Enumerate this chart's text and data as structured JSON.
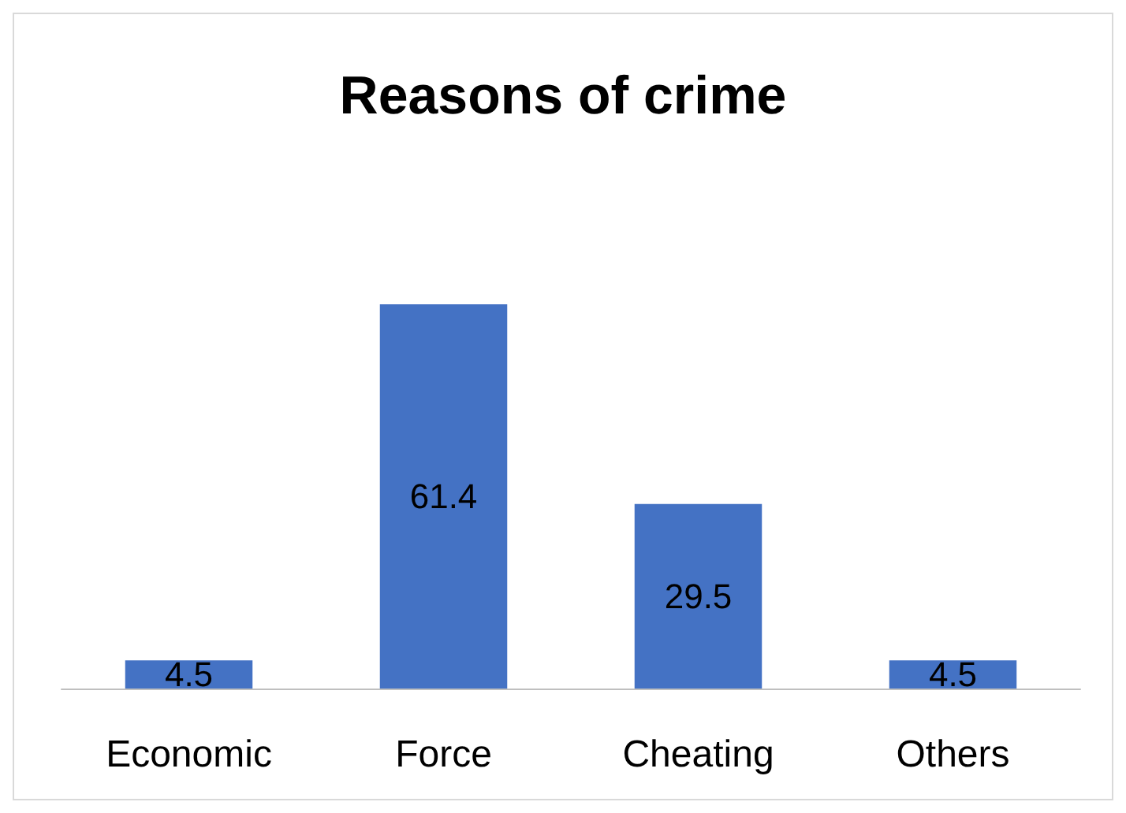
{
  "chart_data": {
    "type": "bar",
    "title": "Reasons of crime",
    "categories": [
      "Economic",
      "Force",
      "Cheating",
      "Others"
    ],
    "values": [
      4.5,
      61.4,
      29.5,
      4.5
    ],
    "color": "#4472c4",
    "data_labels": true
  }
}
